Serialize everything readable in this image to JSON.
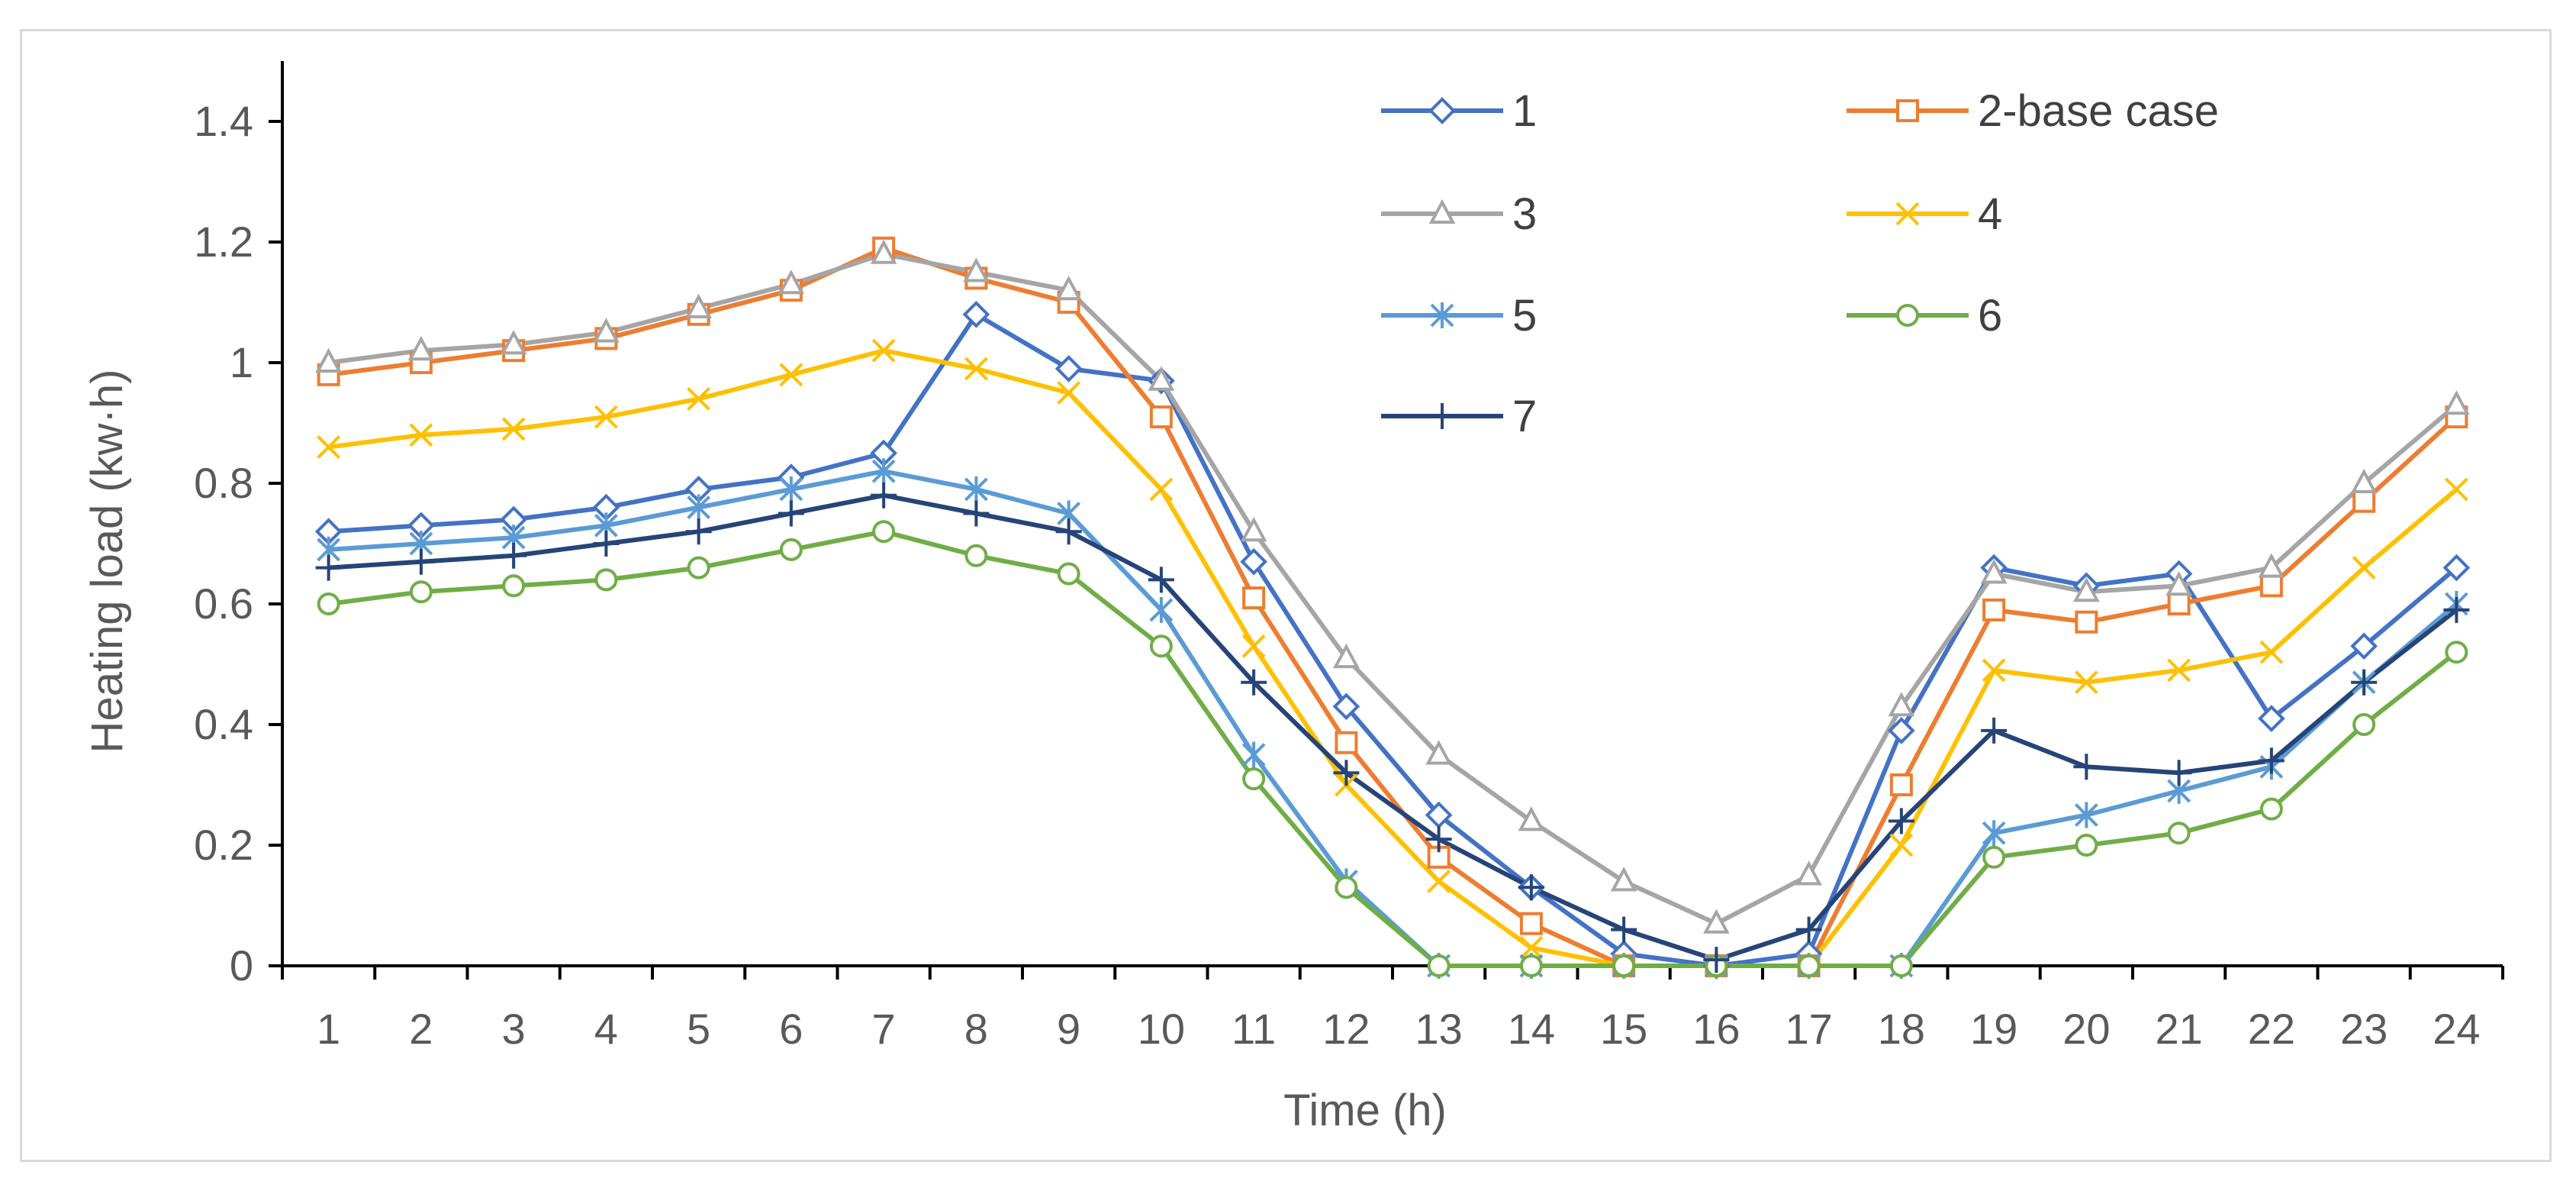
{
  "chart_data": {
    "type": "line",
    "title": "",
    "xlabel": "Time (h)",
    "ylabel": "Heating load (kw·h)",
    "ylim": [
      0,
      1.5
    ],
    "yticks": [
      0,
      0.2,
      0.4,
      0.6,
      0.8,
      1,
      1.2,
      1.4
    ],
    "ytick_labels": [
      "0",
      "0.2",
      "0.4",
      "0.6",
      "0.8",
      "1",
      "1.2",
      "1.4"
    ],
    "categories": [
      "1",
      "2",
      "3",
      "4",
      "5",
      "6",
      "7",
      "8",
      "9",
      "10",
      "11",
      "12",
      "13",
      "14",
      "15",
      "16",
      "17",
      "18",
      "19",
      "20",
      "21",
      "22",
      "23",
      "24"
    ],
    "grid": false,
    "legend_position": "top-right",
    "series": [
      {
        "name": "1",
        "color": "#4472C4",
        "marker": "diamond",
        "values": [
          0.72,
          0.73,
          0.74,
          0.76,
          0.79,
          0.81,
          0.85,
          1.08,
          0.99,
          0.97,
          0.67,
          0.43,
          0.25,
          0.13,
          0.02,
          0,
          0.02,
          0.39,
          0.66,
          0.63,
          0.65,
          0.41,
          0.53,
          0.66
        ]
      },
      {
        "name": "2-base case",
        "color": "#ED7D31",
        "marker": "square",
        "values": [
          0.98,
          1.0,
          1.02,
          1.04,
          1.08,
          1.12,
          1.19,
          1.14,
          1.1,
          0.91,
          0.61,
          0.37,
          0.18,
          0.07,
          0,
          0,
          0,
          0.3,
          0.59,
          0.57,
          0.6,
          0.63,
          0.77,
          0.91
        ]
      },
      {
        "name": "3",
        "color": "#A5A5A5",
        "marker": "triangle",
        "values": [
          1.0,
          1.02,
          1.03,
          1.05,
          1.09,
          1.13,
          1.18,
          1.15,
          1.12,
          0.97,
          0.72,
          0.51,
          0.35,
          0.24,
          0.14,
          0.07,
          0.15,
          0.43,
          0.65,
          0.62,
          0.63,
          0.66,
          0.8,
          0.93
        ]
      },
      {
        "name": "4",
        "color": "#FFC000",
        "marker": "x",
        "values": [
          0.86,
          0.88,
          0.89,
          0.91,
          0.94,
          0.98,
          1.02,
          0.99,
          0.95,
          0.79,
          0.53,
          0.3,
          0.14,
          0.03,
          0,
          0,
          0,
          0.2,
          0.49,
          0.47,
          0.49,
          0.52,
          0.66,
          0.79
        ]
      },
      {
        "name": "5",
        "color": "#5B9BD5",
        "marker": "star",
        "values": [
          0.69,
          0.7,
          0.71,
          0.73,
          0.76,
          0.79,
          0.82,
          0.79,
          0.75,
          0.59,
          0.35,
          0.14,
          0,
          0,
          0,
          0,
          0,
          0,
          0.22,
          0.25,
          0.29,
          0.33,
          0.47,
          0.6
        ]
      },
      {
        "name": "6",
        "color": "#70AD47",
        "marker": "circle",
        "values": [
          0.6,
          0.62,
          0.63,
          0.64,
          0.66,
          0.69,
          0.72,
          0.68,
          0.65,
          0.53,
          0.31,
          0.13,
          0,
          0,
          0,
          0,
          0,
          0,
          0.18,
          0.2,
          0.22,
          0.26,
          0.4,
          0.52
        ]
      },
      {
        "name": "7",
        "color": "#264478",
        "marker": "plus",
        "values": [
          0.66,
          0.67,
          0.68,
          0.7,
          0.72,
          0.75,
          0.78,
          0.75,
          0.72,
          0.64,
          0.47,
          0.32,
          0.21,
          0.13,
          0.06,
          0.01,
          0.06,
          0.24,
          0.39,
          0.33,
          0.32,
          0.34,
          0.47,
          0.59
        ]
      }
    ]
  }
}
